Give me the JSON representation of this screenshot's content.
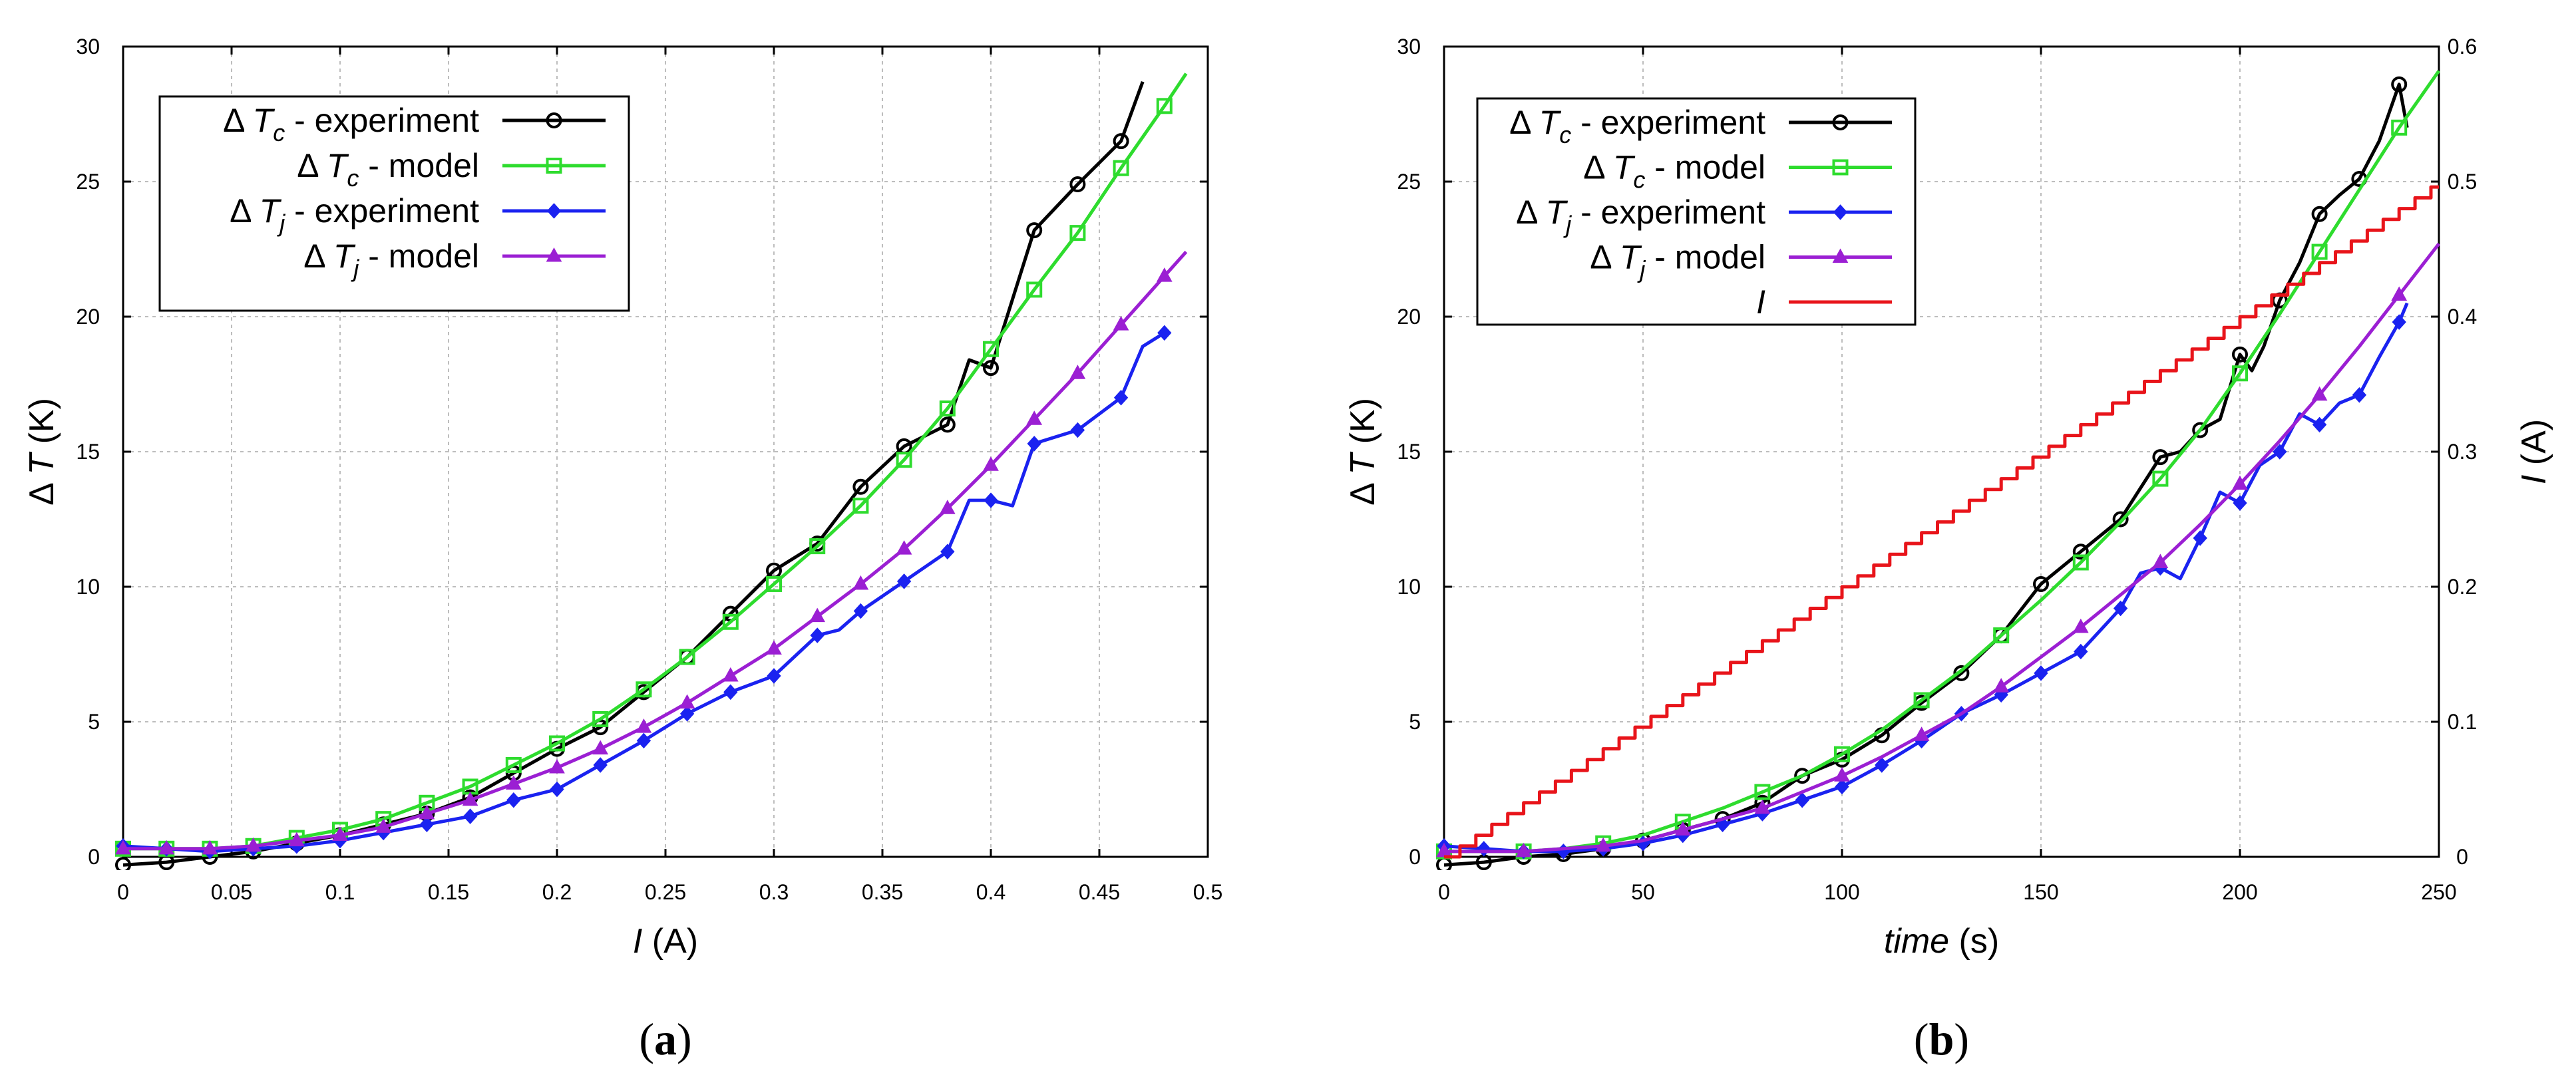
{
  "chart_data": [
    {
      "type": "line",
      "panel_label": "a",
      "xlabel": "I",
      "xunit": "(A)",
      "ylabel": "T",
      "yunit": "(K)",
      "delta": "Δ",
      "xlim": [
        0,
        0.5
      ],
      "ylim": [
        0,
        30
      ],
      "xticks": [
        "0",
        "0.05",
        "0.1",
        "0.15",
        "0.2",
        "0.25",
        "0.3",
        "0.35",
        "0.4",
        "0.45",
        "0.5"
      ],
      "yticks": [
        "0",
        "5",
        "10",
        "15",
        "20",
        "25",
        "30"
      ],
      "grid": true,
      "legend_position": "top-left",
      "series": [
        {
          "name": "experiment",
          "quantity": "Tc",
          "sym": "T",
          "sub": "c",
          "label_suffix": " - experiment",
          "color": "#000000",
          "marker": "circle",
          "x": [
            0,
            0.02,
            0.04,
            0.06,
            0.08,
            0.1,
            0.12,
            0.14,
            0.16,
            0.18,
            0.2,
            0.22,
            0.24,
            0.26,
            0.28,
            0.3,
            0.32,
            0.34,
            0.36,
            0.38,
            0.4,
            0.42,
            0.44,
            0.46
          ],
          "values": [
            -0.3,
            -0.2,
            0.0,
            0.2,
            0.5,
            0.8,
            1.2,
            1.6,
            2.2,
            3.1,
            4.0,
            4.8,
            6.1,
            7.4,
            9.0,
            10.6,
            11.6,
            13.7,
            15.2,
            16.0,
            18.1,
            23.2,
            24.9,
            26.5
          ],
          "line_x": [
            0,
            0.02,
            0.04,
            0.06,
            0.08,
            0.1,
            0.12,
            0.14,
            0.16,
            0.18,
            0.2,
            0.22,
            0.24,
            0.26,
            0.28,
            0.3,
            0.32,
            0.34,
            0.36,
            0.38,
            0.39,
            0.4,
            0.42,
            0.44,
            0.46,
            0.47
          ],
          "line_values": [
            -0.3,
            -0.2,
            0.0,
            0.2,
            0.5,
            0.8,
            1.2,
            1.6,
            2.2,
            3.1,
            4.0,
            4.8,
            6.1,
            7.4,
            9.0,
            10.6,
            11.6,
            13.7,
            15.2,
            16.0,
            18.4,
            18.1,
            23.2,
            24.9,
            26.5,
            28.7
          ]
        },
        {
          "name": "model",
          "quantity": "Tc",
          "sym": "T",
          "sub": "c",
          "label_suffix": " - model",
          "color": "#2edc2e",
          "marker": "square",
          "x": [
            0,
            0.02,
            0.04,
            0.06,
            0.08,
            0.1,
            0.12,
            0.14,
            0.16,
            0.18,
            0.2,
            0.22,
            0.24,
            0.26,
            0.28,
            0.3,
            0.32,
            0.34,
            0.36,
            0.38,
            0.4,
            0.42,
            0.44,
            0.46,
            0.48
          ],
          "values": [
            0.3,
            0.3,
            0.3,
            0.4,
            0.7,
            1.0,
            1.4,
            2.0,
            2.6,
            3.4,
            4.2,
            5.1,
            6.2,
            7.4,
            8.7,
            10.1,
            11.5,
            13.0,
            14.7,
            16.6,
            18.8,
            21.0,
            23.1,
            25.5,
            27.8
          ],
          "line_x": [
            0,
            0.02,
            0.04,
            0.06,
            0.08,
            0.1,
            0.12,
            0.14,
            0.16,
            0.18,
            0.2,
            0.22,
            0.24,
            0.26,
            0.28,
            0.3,
            0.32,
            0.34,
            0.36,
            0.38,
            0.4,
            0.42,
            0.44,
            0.46,
            0.48,
            0.49
          ],
          "line_values": [
            0.3,
            0.3,
            0.3,
            0.4,
            0.7,
            1.0,
            1.4,
            2.0,
            2.6,
            3.4,
            4.2,
            5.1,
            6.2,
            7.4,
            8.7,
            10.1,
            11.5,
            13.0,
            14.7,
            16.6,
            18.8,
            21.0,
            23.1,
            25.5,
            27.8,
            29.0
          ]
        },
        {
          "name": "experiment",
          "quantity": "Tj",
          "sym": "T",
          "sub": "j",
          "label_suffix": " - experiment",
          "color": "#1a22f0",
          "marker": "diamond",
          "x": [
            0,
            0.02,
            0.04,
            0.06,
            0.08,
            0.1,
            0.12,
            0.14,
            0.16,
            0.18,
            0.2,
            0.22,
            0.24,
            0.26,
            0.28,
            0.3,
            0.32,
            0.34,
            0.36,
            0.38,
            0.4,
            0.42,
            0.44,
            0.46,
            0.48
          ],
          "values": [
            0.4,
            0.3,
            0.2,
            0.3,
            0.4,
            0.6,
            0.9,
            1.2,
            1.5,
            2.1,
            2.5,
            3.4,
            4.3,
            5.3,
            6.1,
            6.7,
            8.2,
            9.1,
            10.2,
            11.3,
            13.2,
            15.3,
            15.8,
            17.0,
            19.4
          ],
          "line_x": [
            0,
            0.02,
            0.04,
            0.06,
            0.08,
            0.1,
            0.12,
            0.14,
            0.16,
            0.18,
            0.2,
            0.22,
            0.24,
            0.26,
            0.28,
            0.3,
            0.32,
            0.33,
            0.34,
            0.36,
            0.38,
            0.39,
            0.4,
            0.41,
            0.42,
            0.44,
            0.46,
            0.47,
            0.48
          ],
          "line_values": [
            0.4,
            0.3,
            0.2,
            0.3,
            0.4,
            0.6,
            0.9,
            1.2,
            1.5,
            2.1,
            2.5,
            3.4,
            4.3,
            5.3,
            6.1,
            6.7,
            8.2,
            8.4,
            9.1,
            10.2,
            11.3,
            13.2,
            13.2,
            13.0,
            15.3,
            15.8,
            17.0,
            18.9,
            19.4
          ]
        },
        {
          "name": "model",
          "quantity": "Tj",
          "sym": "T",
          "sub": "j",
          "label_suffix": " - model",
          "color": "#9b1fd3",
          "marker": "triangle",
          "x": [
            0,
            0.02,
            0.04,
            0.06,
            0.08,
            0.1,
            0.12,
            0.14,
            0.16,
            0.18,
            0.2,
            0.22,
            0.24,
            0.26,
            0.28,
            0.3,
            0.32,
            0.34,
            0.36,
            0.38,
            0.4,
            0.42,
            0.44,
            0.46,
            0.48
          ],
          "values": [
            0.3,
            0.3,
            0.3,
            0.4,
            0.6,
            0.8,
            1.1,
            1.6,
            2.1,
            2.7,
            3.3,
            4.0,
            4.8,
            5.7,
            6.7,
            7.7,
            8.9,
            10.1,
            11.4,
            12.9,
            14.5,
            16.2,
            17.9,
            19.7,
            21.5
          ],
          "line_x": [
            0,
            0.02,
            0.04,
            0.06,
            0.08,
            0.1,
            0.12,
            0.14,
            0.16,
            0.18,
            0.2,
            0.22,
            0.24,
            0.26,
            0.28,
            0.3,
            0.32,
            0.34,
            0.36,
            0.38,
            0.4,
            0.42,
            0.44,
            0.46,
            0.48,
            0.49
          ],
          "line_values": [
            0.3,
            0.3,
            0.3,
            0.4,
            0.6,
            0.8,
            1.1,
            1.6,
            2.1,
            2.7,
            3.3,
            4.0,
            4.8,
            5.7,
            6.7,
            7.7,
            8.9,
            10.1,
            11.4,
            12.9,
            14.5,
            16.2,
            17.9,
            19.7,
            21.5,
            22.4
          ]
        }
      ]
    },
    {
      "type": "line",
      "panel_label": "b",
      "xlabel": "time",
      "xunit": "(s)",
      "ylabel": "T",
      "yunit": "(K)",
      "delta": "Δ",
      "y2label": "I",
      "y2unit": "(A)",
      "xlim": [
        0,
        250
      ],
      "ylim": [
        0,
        30
      ],
      "y2lim": [
        0,
        0.6
      ],
      "xticks": [
        "0",
        "50",
        "100",
        "150",
        "200",
        "250"
      ],
      "yticks": [
        "0",
        "5",
        "10",
        "15",
        "20",
        "25",
        "30"
      ],
      "y2ticks": [
        "0",
        "0.1",
        "0.2",
        "0.3",
        "0.4",
        "0.5",
        "0.6"
      ],
      "grid": true,
      "legend_position": "top-left",
      "series": [
        {
          "name": "experiment",
          "quantity": "Tc",
          "sym": "T",
          "sub": "c",
          "label_suffix": " - experiment",
          "color": "#000000",
          "marker": "circle",
          "axis": "left",
          "x": [
            0,
            10,
            20,
            30,
            40,
            50,
            60,
            70,
            80,
            90,
            100,
            110,
            120,
            130,
            140,
            150,
            160,
            170,
            180,
            190,
            200,
            210,
            220,
            230,
            240
          ],
          "values": [
            -0.3,
            -0.2,
            0.0,
            0.1,
            0.3,
            0.6,
            1.0,
            1.4,
            2.0,
            3.0,
            3.6,
            4.5,
            5.7,
            6.8,
            8.2,
            10.1,
            11.3,
            12.5,
            14.8,
            15.8,
            18.6,
            20.6,
            23.8,
            25.1,
            28.6
          ],
          "line_x": [
            0,
            10,
            20,
            30,
            40,
            50,
            60,
            70,
            80,
            90,
            100,
            110,
            120,
            130,
            140,
            150,
            160,
            170,
            180,
            185,
            190,
            195,
            200,
            203,
            206,
            210,
            215,
            220,
            225,
            230,
            235,
            240,
            242
          ],
          "line_values": [
            -0.3,
            -0.2,
            0.0,
            0.1,
            0.3,
            0.6,
            1.0,
            1.4,
            2.0,
            3.0,
            3.6,
            4.5,
            5.7,
            6.8,
            8.2,
            10.1,
            11.3,
            12.5,
            14.8,
            15.0,
            15.8,
            16.2,
            18.6,
            18.0,
            18.9,
            20.6,
            22.0,
            23.8,
            24.5,
            25.1,
            26.5,
            28.6,
            27.0
          ]
        },
        {
          "name": "model",
          "quantity": "Tc",
          "sym": "T",
          "sub": "c",
          "label_suffix": " - model",
          "color": "#2edc2e",
          "marker": "square",
          "axis": "left",
          "x": [
            0,
            20,
            40,
            60,
            80,
            100,
            120,
            140,
            160,
            180,
            200,
            220,
            240
          ],
          "values": [
            0.2,
            0.2,
            0.5,
            1.3,
            2.4,
            3.8,
            5.8,
            8.2,
            10.9,
            14.0,
            17.9,
            22.4,
            27.0
          ],
          "line_x": [
            0,
            10,
            20,
            30,
            40,
            50,
            60,
            70,
            80,
            90,
            100,
            110,
            120,
            130,
            140,
            150,
            160,
            170,
            180,
            190,
            200,
            210,
            220,
            230,
            240,
            250
          ],
          "line_values": [
            0.2,
            0.2,
            0.2,
            0.3,
            0.5,
            0.8,
            1.3,
            1.8,
            2.4,
            3.0,
            3.8,
            4.7,
            5.8,
            6.9,
            8.2,
            9.5,
            10.9,
            12.4,
            14.0,
            15.8,
            17.9,
            20.1,
            22.4,
            24.7,
            27.0,
            29.1
          ]
        },
        {
          "name": "experiment",
          "quantity": "Tj",
          "sym": "T",
          "sub": "j",
          "label_suffix": " - experiment",
          "color": "#1a22f0",
          "marker": "diamond",
          "axis": "left",
          "x": [
            0,
            10,
            20,
            30,
            40,
            50,
            60,
            70,
            80,
            90,
            100,
            110,
            120,
            130,
            140,
            150,
            160,
            170,
            180,
            190,
            200,
            210,
            220,
            230,
            240
          ],
          "values": [
            0.4,
            0.3,
            0.2,
            0.2,
            0.3,
            0.5,
            0.8,
            1.2,
            1.6,
            2.1,
            2.6,
            3.4,
            4.3,
            5.3,
            6.0,
            6.8,
            7.6,
            9.2,
            10.7,
            11.8,
            13.1,
            15.0,
            16.0,
            17.1,
            19.8
          ],
          "line_x": [
            0,
            10,
            20,
            30,
            40,
            50,
            60,
            70,
            80,
            90,
            100,
            110,
            120,
            130,
            140,
            150,
            160,
            170,
            175,
            180,
            185,
            190,
            195,
            200,
            205,
            210,
            215,
            220,
            225,
            230,
            235,
            240,
            242
          ],
          "line_values": [
            0.4,
            0.3,
            0.2,
            0.2,
            0.3,
            0.5,
            0.8,
            1.2,
            1.6,
            2.1,
            2.6,
            3.4,
            4.3,
            5.3,
            6.0,
            6.8,
            7.6,
            9.2,
            10.5,
            10.7,
            10.3,
            11.8,
            13.5,
            13.1,
            14.5,
            15.0,
            16.4,
            16.0,
            16.8,
            17.1,
            18.5,
            19.8,
            20.5
          ]
        },
        {
          "name": "model",
          "quantity": "Tj",
          "sym": "T",
          "sub": "j",
          "label_suffix": " - model",
          "color": "#9b1fd3",
          "marker": "triangle",
          "axis": "left",
          "x": [
            0,
            20,
            40,
            60,
            80,
            100,
            120,
            140,
            160,
            180,
            200,
            220,
            240
          ],
          "values": [
            0.2,
            0.2,
            0.4,
            1.0,
            1.8,
            3.0,
            4.5,
            6.3,
            8.5,
            10.9,
            13.8,
            17.1,
            20.8
          ],
          "line_x": [
            0,
            10,
            20,
            30,
            40,
            50,
            60,
            70,
            80,
            90,
            100,
            110,
            120,
            130,
            140,
            150,
            160,
            170,
            180,
            190,
            200,
            210,
            220,
            230,
            240,
            250
          ],
          "line_values": [
            0.2,
            0.2,
            0.2,
            0.3,
            0.4,
            0.6,
            1.0,
            1.4,
            1.8,
            2.4,
            3.0,
            3.7,
            4.5,
            5.3,
            6.3,
            7.4,
            8.5,
            9.7,
            10.9,
            12.3,
            13.8,
            15.4,
            17.1,
            18.9,
            20.8,
            22.7
          ]
        },
        {
          "name": "I",
          "quantity": "I",
          "sym": "I",
          "sub": "",
          "label_suffix": "",
          "color": "#e8141a",
          "marker": "none",
          "axis": "right",
          "style": "staircase",
          "line_x": [
            0,
            250
          ],
          "line_values": [
            0.0,
            0.494
          ],
          "step_s": 4,
          "step_a": 0.008
        }
      ]
    }
  ]
}
